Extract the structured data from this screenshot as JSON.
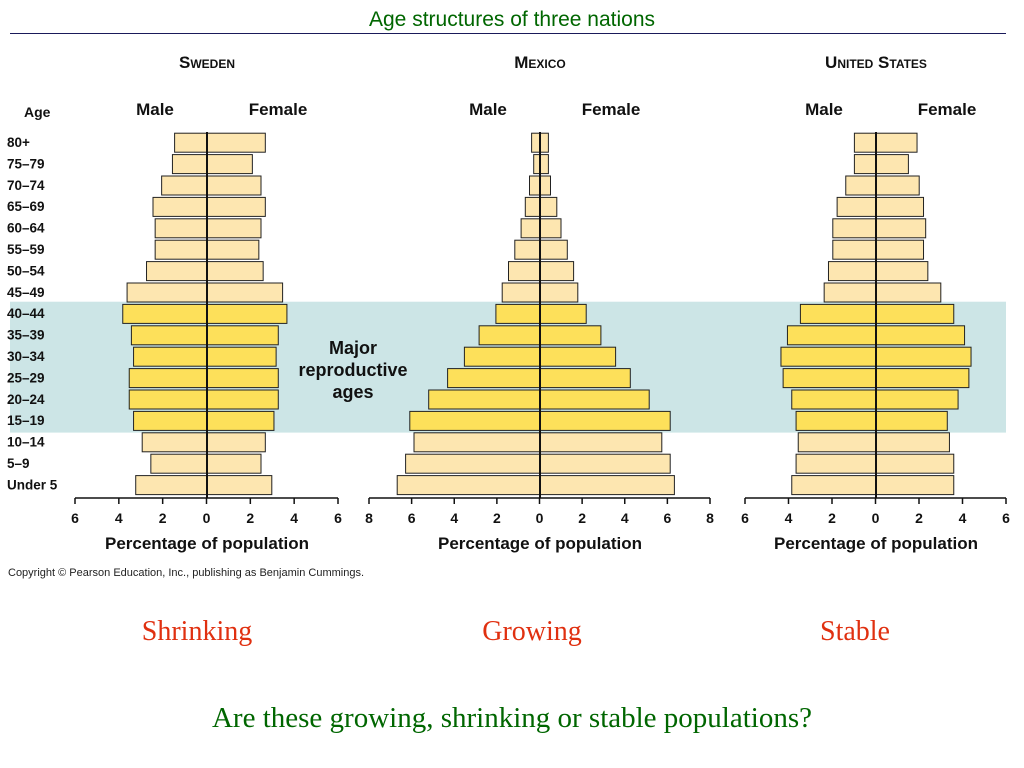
{
  "slide": {
    "title": "Age structures of three nations",
    "question": "Are these growing, shrinking or stable populations?"
  },
  "copyright": "Copyright © Pearson Education, Inc., publishing as Benjamin Cummings.",
  "trends": [
    "Shrinking",
    "Growing",
    "Stable"
  ],
  "colors": {
    "bar_light": "#fde6b0",
    "bar_dark": "#fde05a",
    "band": "#cce5e6",
    "title_green": "#006600",
    "trend_red": "#e03010"
  },
  "chart_data": [
    {
      "type": "bar",
      "orientation": "horizontal-population-pyramid",
      "title": "Sweden",
      "age_axis_label": "Age",
      "left_label": "Male",
      "right_label": "Female",
      "xlabel": "Percentage of population",
      "xlim": [
        -6,
        6
      ],
      "xticks": [
        "6",
        "4",
        "2",
        "0",
        "2",
        "4",
        "6"
      ],
      "categories": [
        "80+",
        "75–79",
        "70–74",
        "65–69",
        "60–64",
        "55–59",
        "50–54",
        "45–49",
        "40–44",
        "35–39",
        "30–34",
        "25–29",
        "20–24",
        "15–19",
        "10–14",
        "5–9",
        "Under 5"
      ],
      "series": [
        {
          "name": "Male",
          "values": [
            1.5,
            1.6,
            2.1,
            2.5,
            2.4,
            2.4,
            2.8,
            3.7,
            3.9,
            3.5,
            3.4,
            3.6,
            3.6,
            3.4,
            3.0,
            2.6,
            3.3
          ]
        },
        {
          "name": "Female",
          "values": [
            2.7,
            2.1,
            2.5,
            2.7,
            2.5,
            2.4,
            2.6,
            3.5,
            3.7,
            3.3,
            3.2,
            3.3,
            3.3,
            3.1,
            2.7,
            2.5,
            3.0
          ]
        }
      ],
      "highlight_categories": [
        "15–19",
        "40–44"
      ],
      "annotation": [
        "Major",
        "reproductive",
        "ages"
      ]
    },
    {
      "type": "bar",
      "orientation": "horizontal-population-pyramid",
      "title": "Mexico",
      "left_label": "Male",
      "right_label": "Female",
      "xlabel": "Percentage of population",
      "xlim": [
        -8,
        8
      ],
      "xticks": [
        "8",
        "6",
        "4",
        "2",
        "0",
        "2",
        "4",
        "6",
        "8"
      ],
      "categories": [
        "80+",
        "75–79",
        "70–74",
        "65–69",
        "60–64",
        "55–59",
        "50–54",
        "45–49",
        "40–44",
        "35–39",
        "30–34",
        "25–29",
        "20–24",
        "15–19",
        "10–14",
        "5–9",
        "Under 5"
      ],
      "series": [
        {
          "name": "Male",
          "values": [
            0.4,
            0.3,
            0.5,
            0.7,
            0.9,
            1.2,
            1.5,
            1.8,
            2.1,
            2.9,
            3.6,
            4.4,
            5.3,
            6.2,
            6.0,
            6.4,
            6.8
          ]
        },
        {
          "name": "Female",
          "values": [
            0.4,
            0.4,
            0.5,
            0.8,
            1.0,
            1.3,
            1.6,
            1.8,
            2.2,
            2.9,
            3.6,
            4.3,
            5.2,
            6.2,
            5.8,
            6.2,
            6.4
          ]
        }
      ],
      "highlight_categories": [
        "15–19",
        "40–44"
      ]
    },
    {
      "type": "bar",
      "orientation": "horizontal-population-pyramid",
      "title": "United States",
      "left_label": "Male",
      "right_label": "Female",
      "xlabel": "Percentage of population",
      "xlim": [
        -6,
        6
      ],
      "xticks": [
        "6",
        "4",
        "2",
        "0",
        "2",
        "4",
        "6"
      ],
      "categories": [
        "80+",
        "75–79",
        "70–74",
        "65–69",
        "60–64",
        "55–59",
        "50–54",
        "45–49",
        "40–44",
        "35–39",
        "30–34",
        "25–29",
        "20–24",
        "15–19",
        "10–14",
        "5–9",
        "Under 5"
      ],
      "series": [
        {
          "name": "Male",
          "values": [
            1.0,
            1.0,
            1.4,
            1.8,
            2.0,
            2.0,
            2.2,
            2.4,
            3.5,
            4.1,
            4.4,
            4.3,
            3.9,
            3.7,
            3.6,
            3.7,
            3.9
          ]
        },
        {
          "name": "Female",
          "values": [
            1.9,
            1.5,
            2.0,
            2.2,
            2.3,
            2.2,
            2.4,
            3.0,
            3.6,
            4.1,
            4.4,
            4.3,
            3.8,
            3.3,
            3.4,
            3.6,
            3.6
          ]
        }
      ],
      "highlight_categories": [
        "15–19",
        "40–44"
      ]
    }
  ]
}
